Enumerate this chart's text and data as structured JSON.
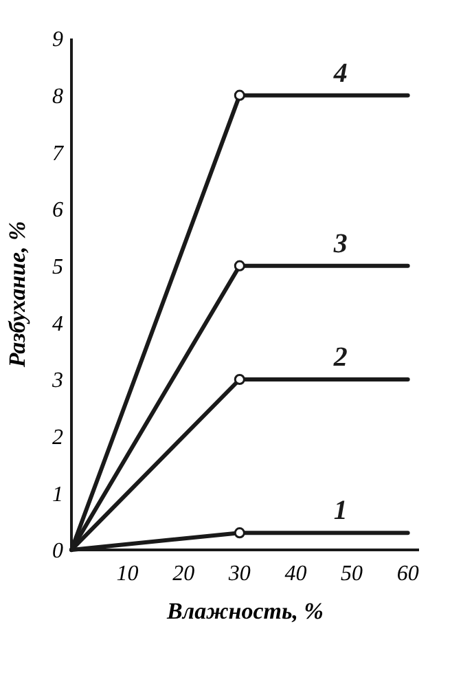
{
  "chart_data": {
    "type": "line",
    "xlabel": "Влажность, %",
    "ylabel": "Разбухание, %",
    "xlim": [
      0,
      62
    ],
    "ylim": [
      0,
      9
    ],
    "xticks": [
      10,
      20,
      30,
      40,
      50,
      60
    ],
    "yticks": [
      0,
      1,
      2,
      3,
      4,
      5,
      6,
      7,
      8,
      9
    ],
    "marker": "none",
    "line_style": "solid",
    "series": [
      {
        "name": "1",
        "color": "#1a1a1a",
        "x": [
          0,
          30,
          60
        ],
        "values": [
          0,
          0.3,
          0.3
        ]
      },
      {
        "name": "2",
        "color": "#1a1a1a",
        "x": [
          0,
          30,
          60
        ],
        "values": [
          0,
          3,
          3
        ]
      },
      {
        "name": "3",
        "color": "#1a1a1a",
        "x": [
          0,
          30,
          60
        ],
        "values": [
          0,
          5,
          5
        ]
      },
      {
        "name": "4",
        "color": "#1a1a1a",
        "x": [
          0,
          30,
          60
        ],
        "values": [
          0,
          8,
          8
        ]
      },
      {
        "type": "scatter",
        "marker": "circle",
        "color": "#1a1a1a",
        "x": [
          30,
          30,
          30,
          30
        ],
        "values": [
          0.3,
          3,
          5,
          8
        ]
      }
    ]
  }
}
